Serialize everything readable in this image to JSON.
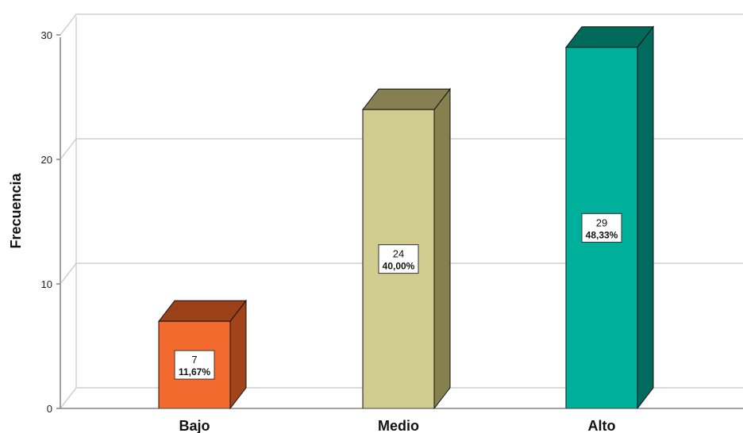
{
  "chart_data": {
    "type": "bar",
    "style": "3d",
    "categories": [
      "Bajo",
      "Medio",
      "Alto"
    ],
    "values": [
      7,
      24,
      29
    ],
    "percent_labels": [
      "11,67%",
      "40,00%",
      "48,33%"
    ],
    "ylabel": "Frecuencia",
    "xlabel": "",
    "ylim": [
      0,
      30
    ],
    "yticks": [
      "0",
      "10",
      "20",
      "30"
    ],
    "grid": true,
    "colors": {
      "front": [
        "#f26a2e",
        "#d1cc8f",
        "#00b09b"
      ],
      "side": [
        "#a3431a",
        "#86804f",
        "#006b5c"
      ],
      "top": [
        "#9a4119",
        "#857f52",
        "#00695a"
      ]
    }
  }
}
